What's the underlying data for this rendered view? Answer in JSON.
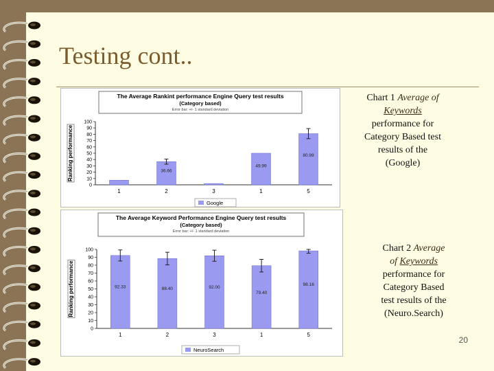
{
  "slide": {
    "title": "Testing cont..",
    "page_number": "20",
    "colors": {
      "background": "#FEFCE3",
      "frame": "#8B7355",
      "title": "#7A5C2E",
      "bar": "#9A9AF0"
    }
  },
  "caption1": {
    "prefix": "Chart 1",
    "italic1": "Average of",
    "italic2": "Keywords",
    "line3": "performance for",
    "line4": "Category Based test",
    "line5": "results of the",
    "line6": "(Google)"
  },
  "caption2": {
    "prefix": "Chart 2",
    "italic1": "Average",
    "italic2a": "of",
    "italic2b": "Keywords",
    "line3": "performance for",
    "line4": "Category Based",
    "line5": "test results of the",
    "line6": "(Neuro.Search)"
  },
  "chart_data": [
    {
      "type": "bar",
      "title": "The Average Rankint performance Engine Query test results",
      "subtitle": "(Category based)",
      "note": "Error bar: +/- 1 standard deviation",
      "ylabel": "Ranking performance",
      "xlabel": "",
      "categories": [
        "1",
        "2",
        "3",
        "1",
        "5"
      ],
      "series": [
        {
          "name": "Google",
          "values": [
            7.3,
            36.66,
            2,
            49.99,
            80.99
          ],
          "errors": [
            0,
            4,
            0,
            0,
            8
          ]
        }
      ],
      "value_labels": [
        "",
        "36.66",
        "",
        "49.99",
        "80.99"
      ],
      "y_ticks": [
        0,
        10,
        20,
        30,
        40,
        50,
        60,
        70,
        80,
        90,
        100
      ],
      "ylim": [
        0,
        100
      ],
      "legend": "bottom",
      "grid": false
    },
    {
      "type": "bar",
      "title": "The Average Keyword Performance Engine Query test results",
      "subtitle": "(Category based)",
      "note": "Error bar: +/- 1 standard deviation",
      "ylabel": "Ranking performance",
      "xlabel": "",
      "categories": [
        "1",
        "2",
        "3",
        "1",
        "5"
      ],
      "series": [
        {
          "name": "NeuroSearch",
          "values": [
            92.33,
            88.4,
            92.0,
            79.4,
            98.16
          ],
          "errors": [
            7,
            8,
            7,
            8,
            3
          ]
        }
      ],
      "value_labels": [
        "92.33",
        "88.40",
        "92.00",
        "79.40",
        "98.16"
      ],
      "y_ticks": [
        0,
        10,
        20,
        30,
        40,
        50,
        60,
        70,
        80,
        90,
        100
      ],
      "ylim": [
        0,
        100
      ],
      "legend": "bottom",
      "grid": false
    }
  ]
}
